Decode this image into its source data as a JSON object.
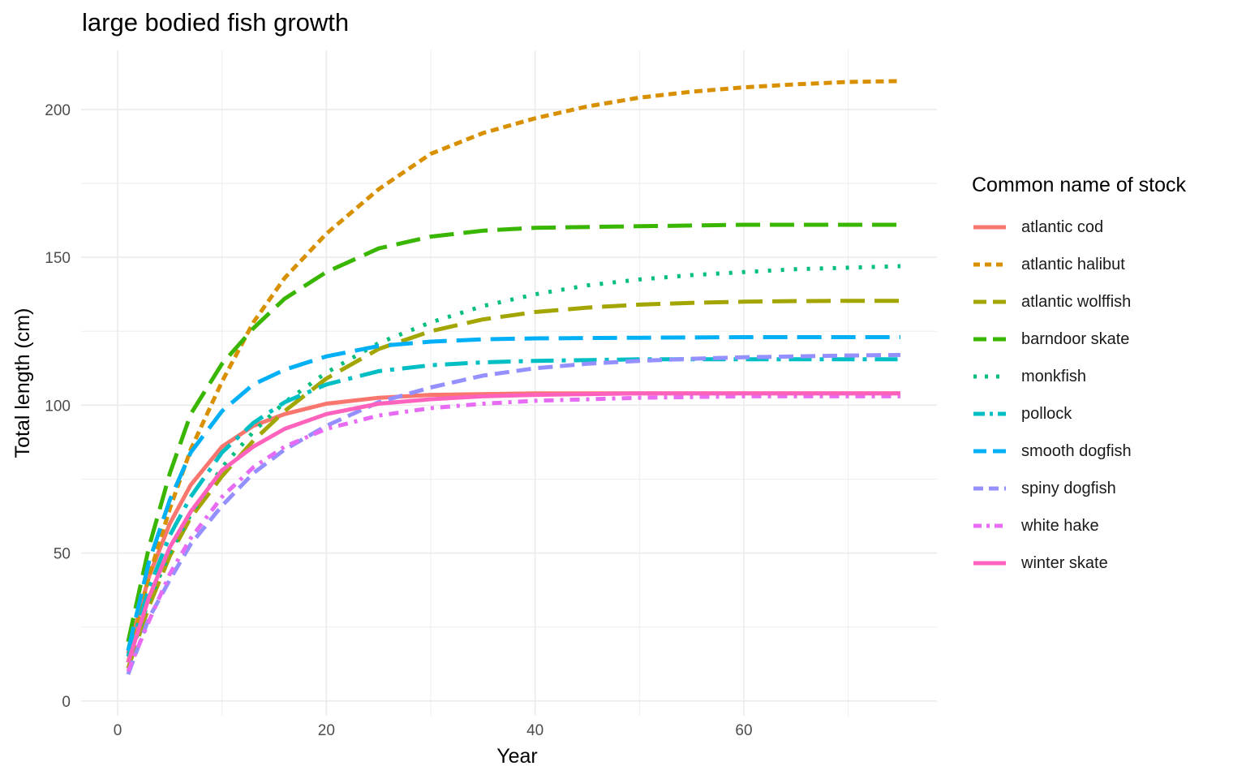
{
  "chart_data": {
    "type": "line",
    "title": "large bodied fish growth",
    "xlabel": "Year",
    "ylabel": "Total length (cm)",
    "xlim": [
      -3.5,
      78.5
    ],
    "ylim": [
      -5,
      220
    ],
    "xticks": [
      0,
      20,
      40,
      60
    ],
    "yticks": [
      0,
      50,
      100,
      150,
      200
    ],
    "grid": true,
    "legend_title": "Common name of stock",
    "legend_position": "right",
    "series": [
      {
        "name": "atlantic cod",
        "color": "#F8766D",
        "dash": "solid",
        "x": [
          1,
          3,
          5,
          7,
          10,
          13,
          16,
          20,
          25,
          30,
          40,
          50,
          60,
          75
        ],
        "y": [
          16,
          42,
          60,
          73,
          86,
          93,
          97,
          100.5,
          102.5,
          103.5,
          104,
          104,
          104,
          104
        ]
      },
      {
        "name": "atlantic halibut",
        "color": "#D89000",
        "dash": "short-dash",
        "x": [
          1,
          3,
          5,
          7,
          10,
          13,
          16,
          20,
          25,
          30,
          35,
          40,
          45,
          50,
          55,
          60,
          65,
          70,
          75
        ],
        "y": [
          13,
          42,
          65,
          85,
          108,
          128,
          143,
          158,
          173,
          185,
          192,
          197,
          201,
          204,
          206,
          207.5,
          208.5,
          209.3,
          209.6
        ]
      },
      {
        "name": "atlantic wolffish",
        "color": "#A3A500",
        "dash": "long-dash",
        "x": [
          1,
          3,
          5,
          7,
          10,
          13,
          16,
          20,
          25,
          30,
          35,
          40,
          45,
          50,
          55,
          60,
          65,
          70,
          75
        ],
        "y": [
          11,
          32,
          49,
          62,
          76,
          88,
          98,
          109,
          119,
          125,
          129,
          131.5,
          133,
          134,
          134.6,
          135,
          135.2,
          135.3,
          135.3
        ]
      },
      {
        "name": "barndoor skate",
        "color": "#39B600",
        "dash": "long-dash",
        "x": [
          1,
          3,
          5,
          7,
          10,
          13,
          16,
          20,
          25,
          30,
          35,
          40,
          50,
          60,
          75
        ],
        "y": [
          20,
          52,
          77,
          97,
          114,
          126,
          136,
          145,
          153,
          157,
          159,
          160,
          160.5,
          161,
          161
        ]
      },
      {
        "name": "monkfish",
        "color": "#00BF7D",
        "dash": "dotted",
        "x": [
          1,
          3,
          5,
          7,
          10,
          13,
          16,
          20,
          25,
          30,
          35,
          40,
          45,
          50,
          55,
          60,
          65,
          70,
          75
        ],
        "y": [
          13,
          34,
          50,
          63,
          79,
          91,
          101,
          111,
          121,
          128,
          133.5,
          137.5,
          140.5,
          142.5,
          144,
          145,
          146,
          146.5,
          147
        ]
      },
      {
        "name": "pollock",
        "color": "#00BFC4",
        "dash": "dot-dash",
        "x": [
          1,
          3,
          5,
          7,
          10,
          13,
          16,
          20,
          25,
          30,
          35,
          40,
          50,
          60,
          75
        ],
        "y": [
          15,
          38,
          56,
          69,
          84,
          94,
          101,
          107,
          111.5,
          113.5,
          114.5,
          115,
          115.5,
          115.5,
          115.5
        ]
      },
      {
        "name": "smooth dogfish",
        "color": "#00B0F6",
        "dash": "long-dash",
        "x": [
          1,
          3,
          5,
          7,
          10,
          13,
          16,
          20,
          25,
          30,
          35,
          40,
          50,
          60,
          75
        ],
        "y": [
          17,
          47,
          68,
          84,
          98,
          107,
          112,
          116.5,
          120,
          121.5,
          122.3,
          122.6,
          122.8,
          123,
          123
        ]
      },
      {
        "name": "spiny dogfish",
        "color": "#9590FF",
        "dash": "dash",
        "x": [
          1,
          3,
          5,
          7,
          10,
          13,
          16,
          20,
          25,
          30,
          35,
          40,
          45,
          50,
          55,
          60,
          65,
          70,
          75
        ],
        "y": [
          9,
          28,
          41,
          53,
          66,
          77,
          85,
          93,
          101,
          106,
          110,
          112.5,
          114,
          115,
          115.7,
          116.2,
          116.5,
          116.8,
          117
        ]
      },
      {
        "name": "white hake",
        "color": "#E76BF3",
        "dash": "dash-dot",
        "x": [
          1,
          3,
          5,
          7,
          10,
          13,
          16,
          20,
          25,
          30,
          35,
          40,
          50,
          60,
          75
        ],
        "y": [
          10,
          27,
          43,
          55,
          69,
          79,
          86,
          92,
          96.5,
          99,
          100.5,
          101.5,
          102.5,
          103,
          103
        ]
      },
      {
        "name": "winter skate",
        "color": "#FF62BC",
        "dash": "solid",
        "x": [
          1,
          3,
          5,
          7,
          10,
          13,
          16,
          20,
          25,
          30,
          35,
          40,
          50,
          60,
          75
        ],
        "y": [
          13,
          35,
          52,
          64,
          78,
          86,
          92,
          97,
          100.5,
          102,
          103,
          103.5,
          104,
          104,
          104
        ]
      }
    ]
  }
}
